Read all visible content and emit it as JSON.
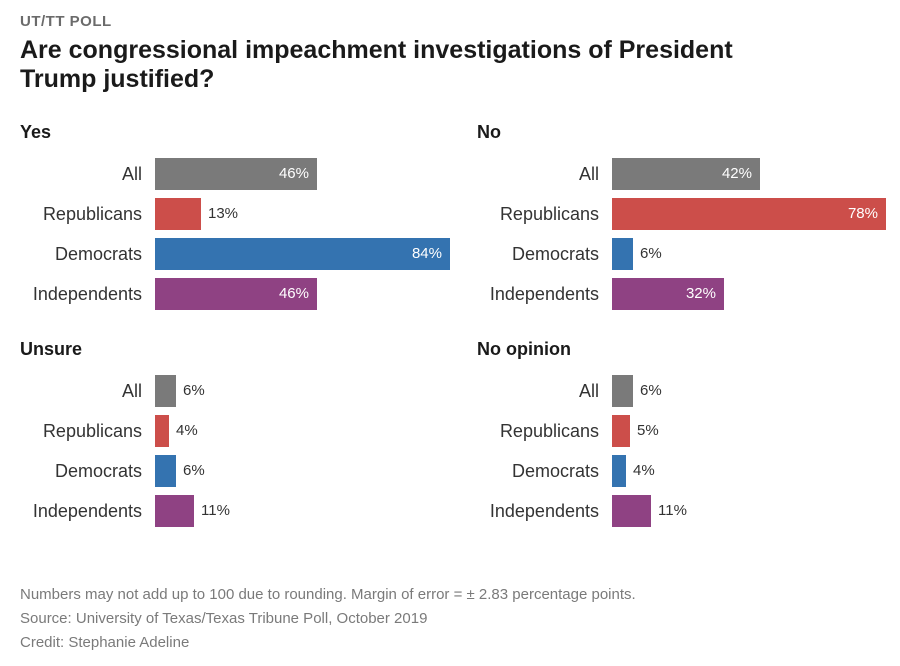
{
  "header": {
    "kicker": "UT/TT POLL",
    "title": "Are congressional impeachment investigations of President Trump justified?"
  },
  "colors": {
    "All": "#7a7a7a",
    "Republicans": "#cc4e4a",
    "Democrats": "#3473b0",
    "Independents": "#8f4283"
  },
  "chart_data": [
    {
      "type": "bar",
      "title": "Yes",
      "categories": [
        "All",
        "Republicans",
        "Democrats",
        "Independents"
      ],
      "values": [
        46,
        13,
        84,
        46
      ],
      "unit": "%",
      "xlim": [
        0,
        84
      ]
    },
    {
      "type": "bar",
      "title": "No",
      "categories": [
        "All",
        "Republicans",
        "Democrats",
        "Independents"
      ],
      "values": [
        42,
        78,
        6,
        32
      ],
      "unit": "%",
      "xlim": [
        0,
        84
      ]
    },
    {
      "type": "bar",
      "title": "Unsure",
      "categories": [
        "All",
        "Republicans",
        "Democrats",
        "Independents"
      ],
      "values": [
        6,
        4,
        6,
        11
      ],
      "unit": "%",
      "xlim": [
        0,
        84
      ]
    },
    {
      "type": "bar",
      "title": "No opinion",
      "categories": [
        "All",
        "Republicans",
        "Democrats",
        "Independents"
      ],
      "values": [
        6,
        5,
        4,
        11
      ],
      "unit": "%",
      "xlim": [
        0,
        84
      ]
    }
  ],
  "footer": {
    "note": "Numbers may not add up to 100 due to rounding. Margin of error = ± 2.83 percentage points.",
    "source": "Source: University of Texas/Texas Tribune Poll, October 2019",
    "credit": "Credit: Stephanie Adeline"
  }
}
